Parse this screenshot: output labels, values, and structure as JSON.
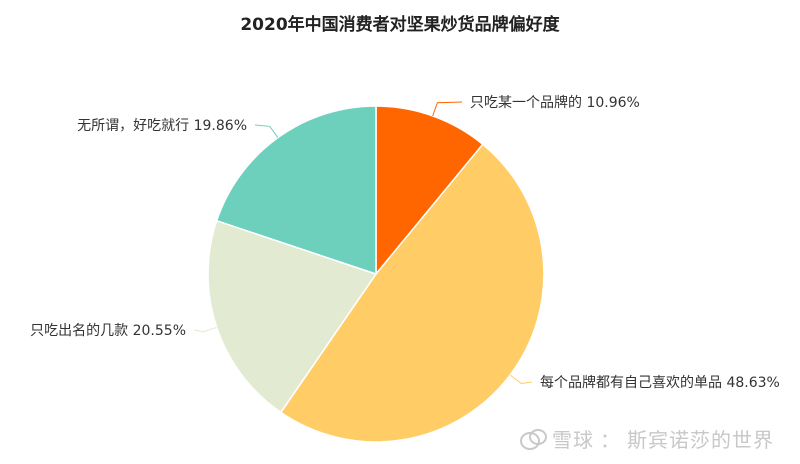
{
  "chart_data": {
    "type": "pie",
    "title": "2020年中国消费者对坚果炒货品牌偏好度",
    "unit": "%",
    "slices": [
      {
        "label": "只吃某一个品牌的",
        "value": 10.96,
        "display": "10.96%",
        "color": "#ff6600"
      },
      {
        "label": "每个品牌都有自己喜欢的单品",
        "value": 48.63,
        "display": "48.63%",
        "color": "#ffcc66"
      },
      {
        "label": "只吃出名的几款",
        "value": 20.55,
        "display": "20.55%",
        "color": "#e2ebd2"
      },
      {
        "label": "无所谓，好吃就行",
        "value": 19.86,
        "display": "19.86%",
        "color": "#6dd0bc"
      }
    ],
    "start_angle_deg": 0,
    "direction": "clockwise",
    "legend": "none"
  },
  "watermark": {
    "brand": "雪球",
    "separator": "：",
    "author": "斯宾诺莎的世界"
  }
}
